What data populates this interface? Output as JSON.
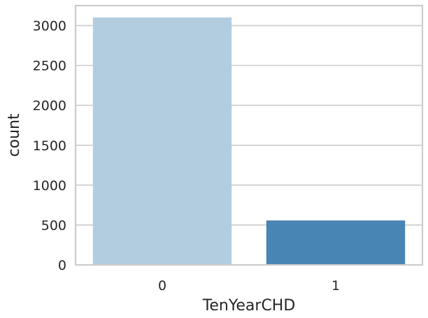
{
  "chart_data": {
    "type": "bar",
    "title": "",
    "xlabel": "TenYearCHD",
    "ylabel": "count",
    "categories": [
      "0",
      "1"
    ],
    "values": [
      3101,
      557
    ],
    "ylim": [
      0,
      3250
    ],
    "yticks": [
      0,
      500,
      1000,
      1500,
      2000,
      2500,
      3000
    ],
    "grid": "horizontal",
    "colors": [
      "#b3cde0",
      "#4884b4"
    ],
    "grid_color": "#cccccc",
    "axis_color": "#cccccc",
    "background": "#ffffff"
  }
}
